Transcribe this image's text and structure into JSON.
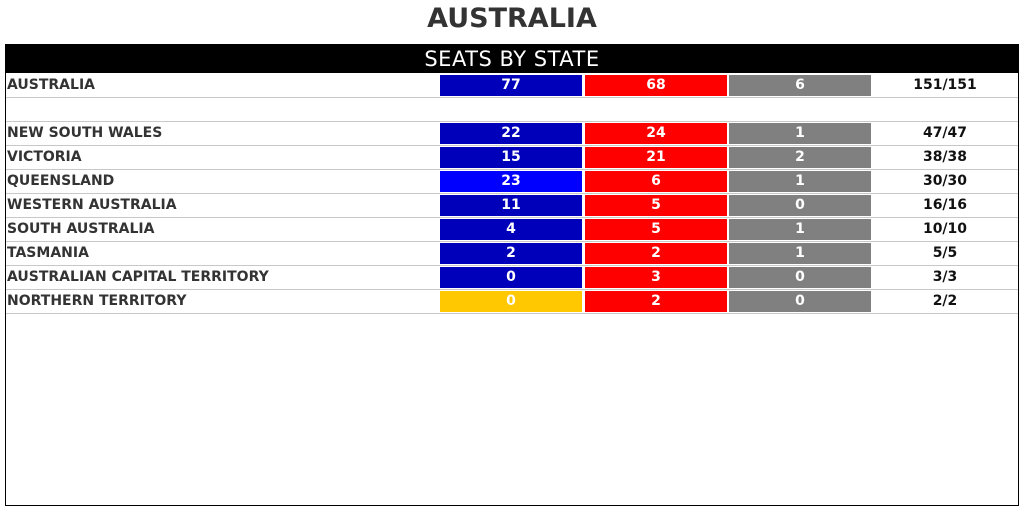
{
  "title": "AUSTRALIA",
  "table": {
    "heading": "SEATS BY STATE",
    "national": {
      "name": "AUSTRALIA",
      "coalition": "77",
      "labor": "68",
      "other": "6",
      "total": "151/151",
      "coalition_color": "#0000bb"
    },
    "states": [
      {
        "name": "NEW SOUTH WALES",
        "coalition": "22",
        "labor": "24",
        "other": "1",
        "total": "47/47",
        "coalition_color": "#0000bb"
      },
      {
        "name": "VICTORIA",
        "coalition": "15",
        "labor": "21",
        "other": "2",
        "total": "38/38",
        "coalition_color": "#0000bb"
      },
      {
        "name": "QUEENSLAND",
        "coalition": "23",
        "labor": "6",
        "other": "1",
        "total": "30/30",
        "coalition_color": "#0000ff"
      },
      {
        "name": "WESTERN AUSTRALIA",
        "coalition": "11",
        "labor": "5",
        "other": "0",
        "total": "16/16",
        "coalition_color": "#0000bb"
      },
      {
        "name": "SOUTH AUSTRALIA",
        "coalition": "4",
        "labor": "5",
        "other": "1",
        "total": "10/10",
        "coalition_color": "#0000bb"
      },
      {
        "name": "TASMANIA",
        "coalition": "2",
        "labor": "2",
        "other": "1",
        "total": "5/5",
        "coalition_color": "#0000bb"
      },
      {
        "name": "AUSTRALIAN CAPITAL TERRITORY",
        "coalition": "0",
        "labor": "3",
        "other": "0",
        "total": "3/3",
        "coalition_color": "#0000bb"
      },
      {
        "name": "NORTHERN TERRITORY",
        "coalition": "0",
        "labor": "2",
        "other": "0",
        "total": "2/2",
        "coalition_color": "#ffc800"
      }
    ],
    "colors": {
      "labor": "#ff0000",
      "other": "#808080",
      "header_bg": "#000000"
    }
  }
}
